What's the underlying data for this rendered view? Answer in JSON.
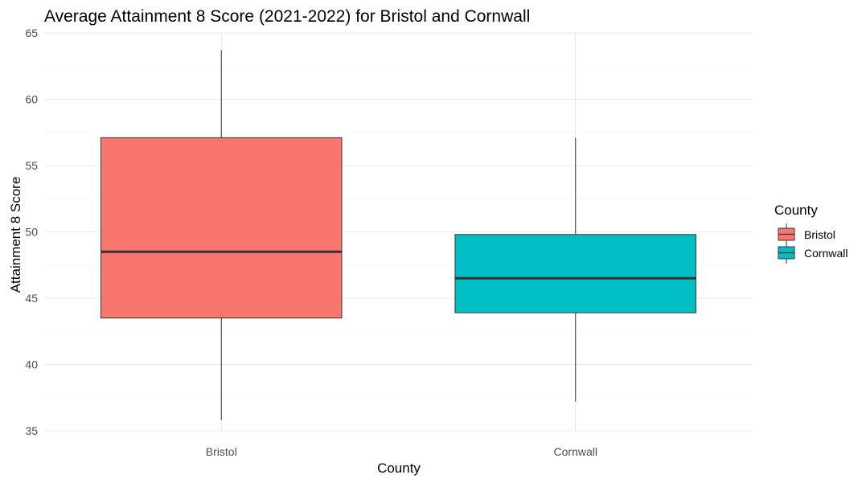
{
  "chart_data": {
    "type": "box",
    "title": "Average Attainment 8 Score (2021-2022) for Bristol and Cornwall",
    "xlabel": "County",
    "ylabel": "Attainment 8 Score",
    "ylim": [
      35,
      65
    ],
    "yticks": [
      35,
      40,
      45,
      50,
      55,
      60,
      65
    ],
    "grid": true,
    "legend": {
      "title": "County",
      "position": "right",
      "entries": [
        "Bristol",
        "Cornwall"
      ]
    },
    "categories": [
      "Bristol",
      "Cornwall"
    ],
    "boxes": [
      {
        "name": "Bristol",
        "color": "#F8766D",
        "whisker_low": 35.8,
        "q1": 43.5,
        "median": 48.5,
        "q3": 57.1,
        "whisker_high": 63.7
      },
      {
        "name": "Cornwall",
        "color": "#00BFC4",
        "whisker_low": 37.2,
        "q1": 43.9,
        "median": 46.5,
        "q3": 49.8,
        "whisker_high": 57.1
      }
    ]
  }
}
